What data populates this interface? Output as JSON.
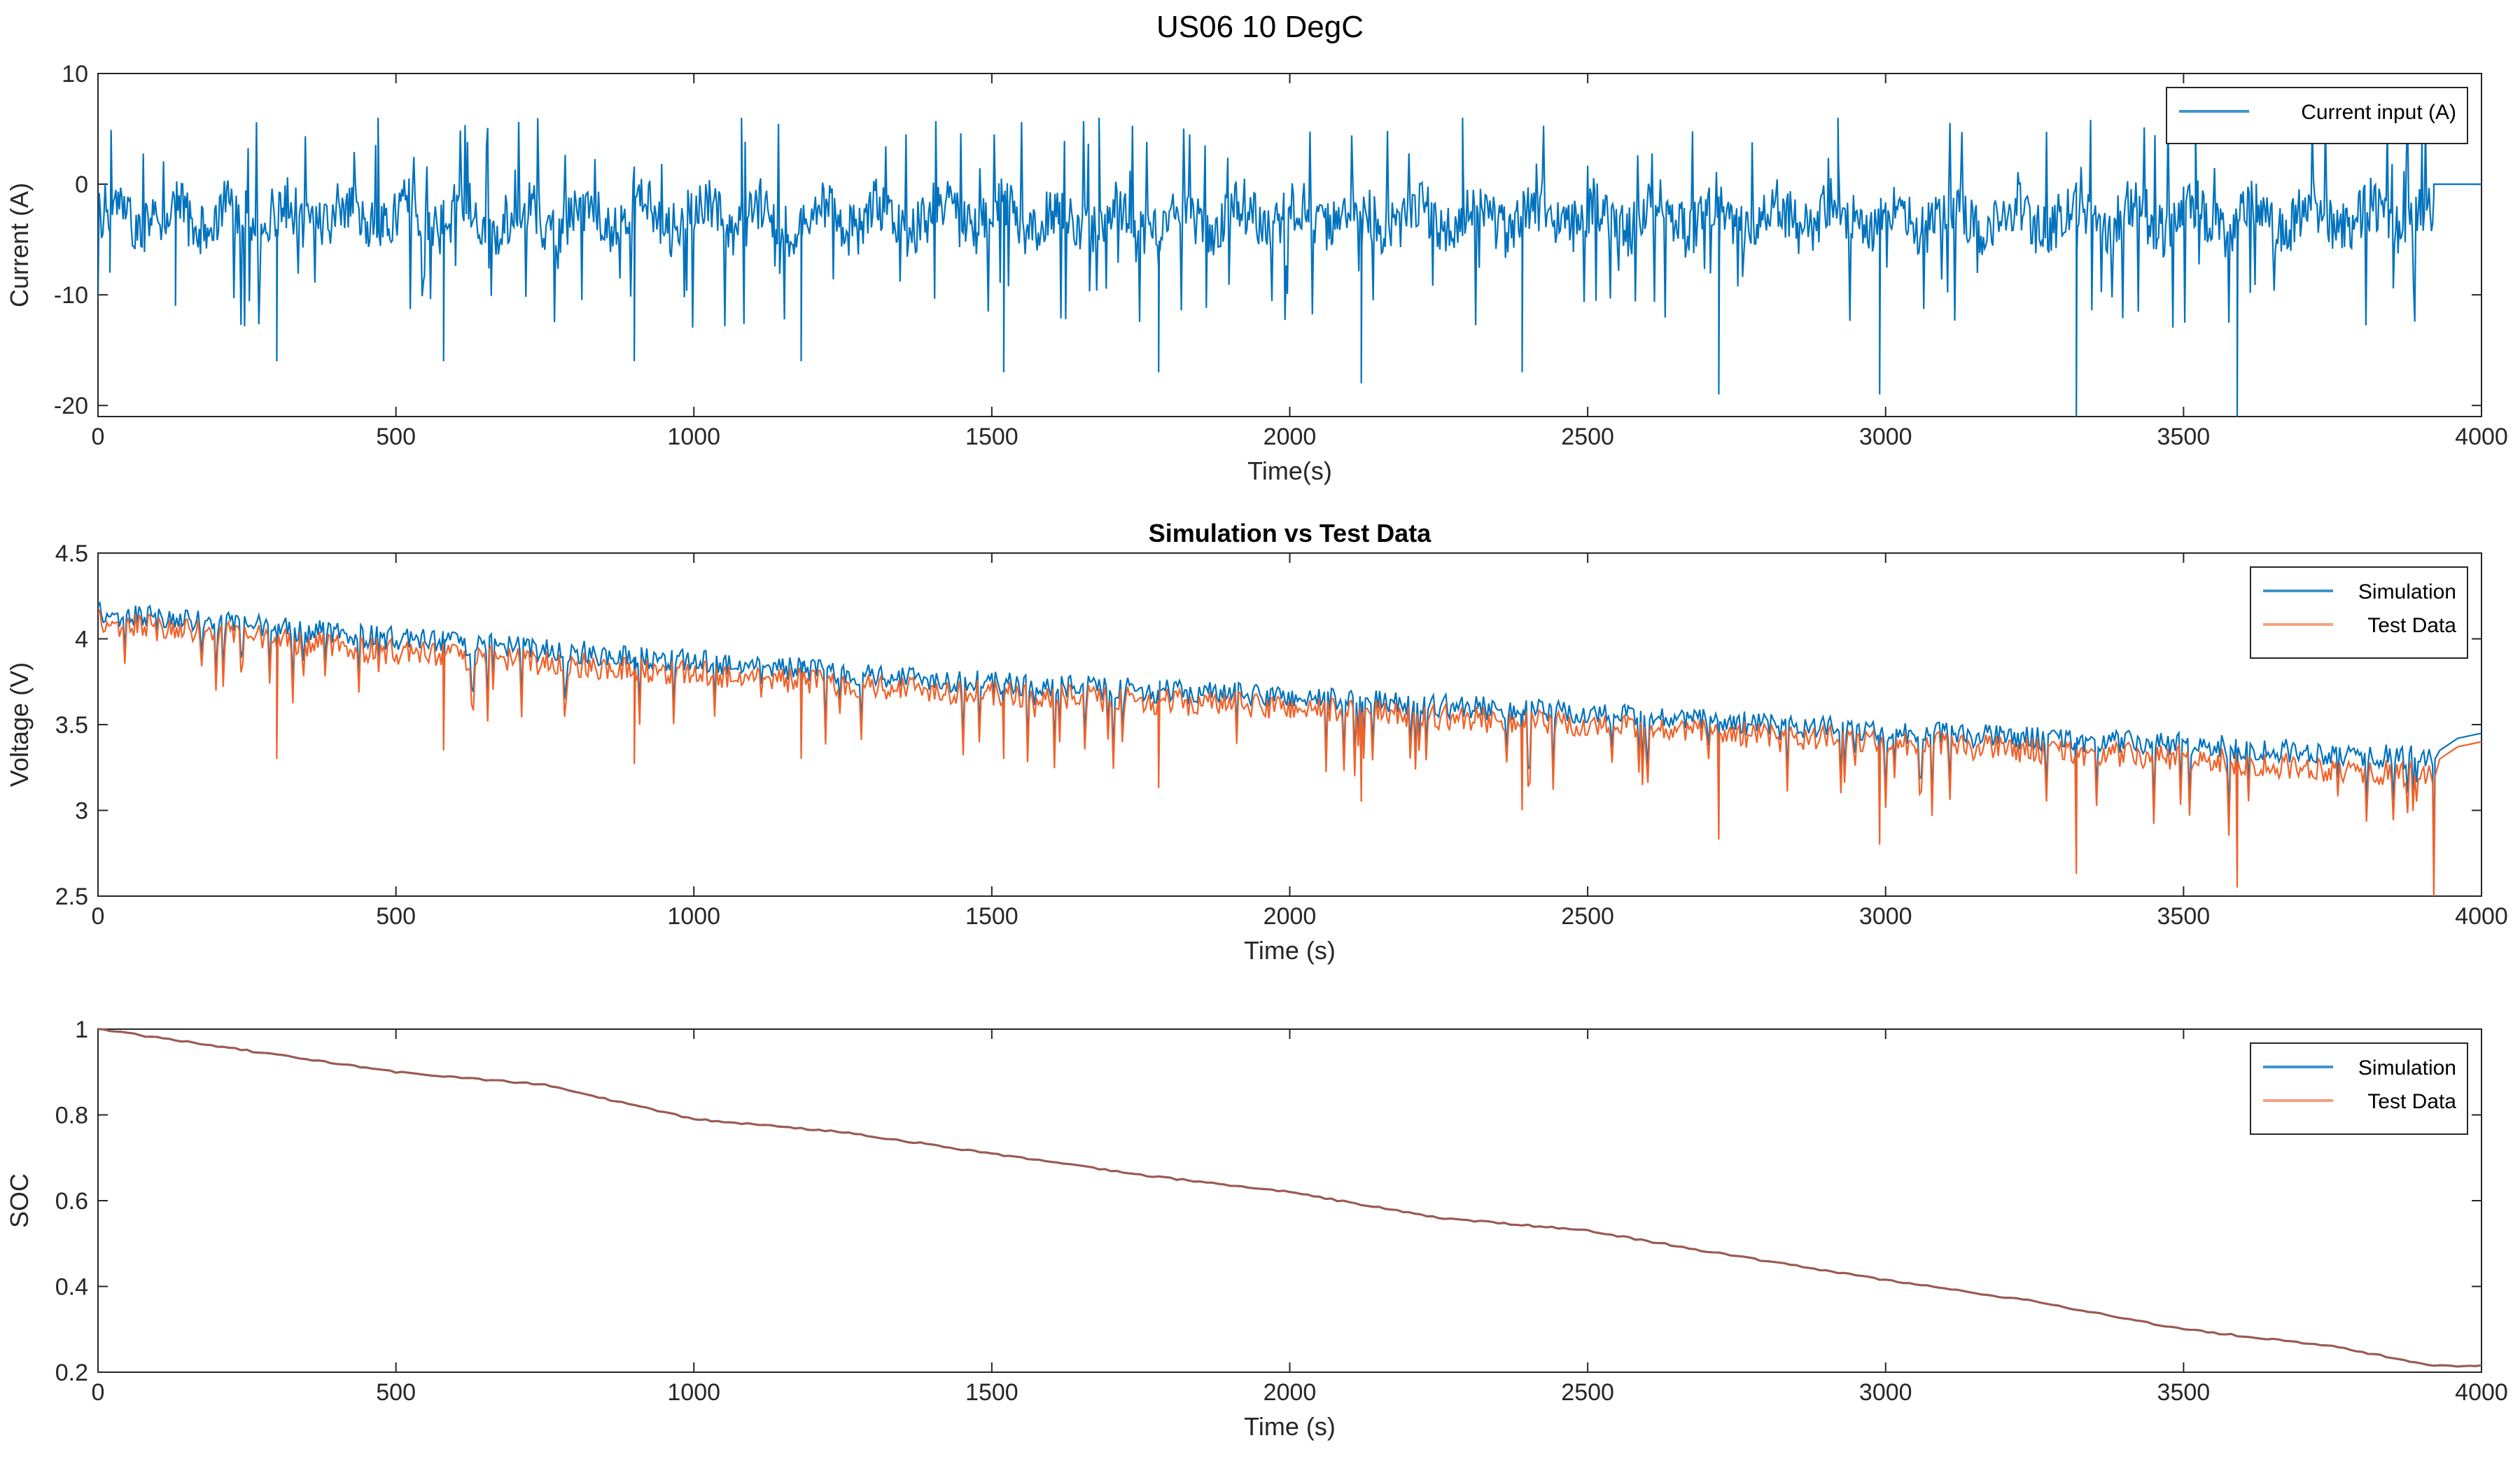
{
  "figure_title": "US06 10 DegC",
  "colors": {
    "simulation": "#0072BD",
    "test_data": "#F0622A",
    "soc_line": "#A0594D",
    "axis": "#262626"
  },
  "chart_data": [
    {
      "id": "current",
      "type": "line",
      "title": "",
      "xlabel": "Time(s)",
      "ylabel": "Current (A)",
      "xlim": [
        0,
        4000
      ],
      "ylim": [
        -21,
        10
      ],
      "xticks": [
        0,
        500,
        1000,
        1500,
        2000,
        2500,
        3000,
        3500,
        4000
      ],
      "yticks": [
        -20,
        -10,
        0,
        10
      ],
      "legend": "top-right",
      "series": [
        {
          "name": "Current input (A)",
          "color": "#0072BD",
          "description": "US06 drive-cycle current, repeated ~6.6 cycles, mostly between -5 and 0 A with discharge spikes to about -21 A and regen peaks up to about +6 A; drops to 0 A after ~3920 s",
          "cycle_start_times": [
            0,
            290,
            590,
            890,
            1190,
            1490,
            1790,
            2090,
            2390,
            2690,
            2990,
            3290,
            3590
          ],
          "spike_points": [
            [
              20,
              -8
            ],
            [
              130,
              -11
            ],
            [
              300,
              -16
            ],
            [
              470,
              6
            ],
            [
              580,
              -16
            ],
            [
              900,
              -16
            ],
            [
              1080,
              6
            ],
            [
              1180,
              -16
            ],
            [
              1520,
              -17
            ],
            [
              1680,
              6
            ],
            [
              1780,
              -17
            ],
            [
              2120,
              -18
            ],
            [
              2290,
              6
            ],
            [
              2390,
              -17
            ],
            [
              2720,
              -19
            ],
            [
              2920,
              6
            ],
            [
              2990,
              -19
            ],
            [
              3320,
              -21
            ],
            [
              3520,
              6
            ],
            [
              3590,
              -21
            ],
            [
              3920,
              0
            ],
            [
              4000,
              0
            ]
          ]
        }
      ]
    },
    {
      "id": "voltage",
      "type": "line",
      "title": "Simulation vs Test Data",
      "xlabel": "Time (s)",
      "ylabel": "Voltage (V)",
      "xlim": [
        0,
        4000
      ],
      "ylim": [
        2.5,
        4.5
      ],
      "xticks": [
        0,
        500,
        1000,
        1500,
        2000,
        2500,
        3000,
        3500,
        4000
      ],
      "yticks": [
        2.5,
        3,
        3.5,
        4,
        4.5
      ],
      "legend": "top-right",
      "series": [
        {
          "name": "Simulation",
          "color": "#0072BD",
          "trend": [
            [
              0,
              4.15
            ],
            [
              500,
              4.0
            ],
            [
              1000,
              3.87
            ],
            [
              1500,
              3.74
            ],
            [
              2000,
              3.66
            ],
            [
              2500,
              3.56
            ],
            [
              3000,
              3.46
            ],
            [
              3500,
              3.38
            ],
            [
              3920,
              3.3
            ],
            [
              4000,
              3.45
            ]
          ]
        },
        {
          "name": "Test Data",
          "color": "#F0622A",
          "trend": [
            [
              0,
              4.1
            ],
            [
              500,
              3.92
            ],
            [
              1000,
              3.8
            ],
            [
              1500,
              3.68
            ],
            [
              2000,
              3.6
            ],
            [
              2500,
              3.49
            ],
            [
              3000,
              3.4
            ],
            [
              3500,
              3.3
            ],
            [
              3920,
              3.2
            ],
            [
              4000,
              3.4
            ]
          ],
          "dip_points": [
            [
              300,
              3.3
            ],
            [
              580,
              3.35
            ],
            [
              900,
              3.27
            ],
            [
              1180,
              3.3
            ],
            [
              1520,
              3.3
            ],
            [
              1780,
              3.13
            ],
            [
              2120,
              3.05
            ],
            [
              2390,
              3.0
            ],
            [
              2720,
              2.83
            ],
            [
              2990,
              2.8
            ],
            [
              3320,
              2.63
            ],
            [
              3590,
              2.55
            ],
            [
              3920,
              2.5
            ]
          ]
        }
      ]
    },
    {
      "id": "soc",
      "type": "line",
      "title": "",
      "xlabel": "Time (s)",
      "ylabel": "SOC",
      "xlim": [
        0,
        4000
      ],
      "ylim": [
        0.2,
        1
      ],
      "xticks": [
        0,
        500,
        1000,
        1500,
        2000,
        2500,
        3000,
        3500,
        4000
      ],
      "yticks": [
        0.2,
        0.4,
        0.6,
        0.8,
        1
      ],
      "legend": "top-right",
      "series": [
        {
          "name": "Simulation",
          "color": "#0072BD",
          "x": [
            0,
            250,
            500,
            750,
            1000,
            1250,
            1500,
            1750,
            2000,
            2250,
            2500,
            2750,
            3000,
            3250,
            3500,
            3750,
            3920,
            4000
          ],
          "values": [
            1.0,
            0.95,
            0.9,
            0.87,
            0.79,
            0.76,
            0.71,
            0.66,
            0.62,
            0.56,
            0.53,
            0.47,
            0.415,
            0.365,
            0.3,
            0.26,
            0.215,
            0.215
          ]
        },
        {
          "name": "Test Data",
          "color": "#F0622A",
          "x": [
            0,
            250,
            500,
            750,
            1000,
            1250,
            1500,
            1750,
            2000,
            2250,
            2500,
            2750,
            3000,
            3250,
            3500,
            3750,
            3920,
            4000
          ],
          "values": [
            1.0,
            0.95,
            0.9,
            0.87,
            0.79,
            0.76,
            0.71,
            0.66,
            0.62,
            0.56,
            0.53,
            0.47,
            0.415,
            0.365,
            0.3,
            0.26,
            0.215,
            0.215
          ]
        }
      ]
    }
  ]
}
